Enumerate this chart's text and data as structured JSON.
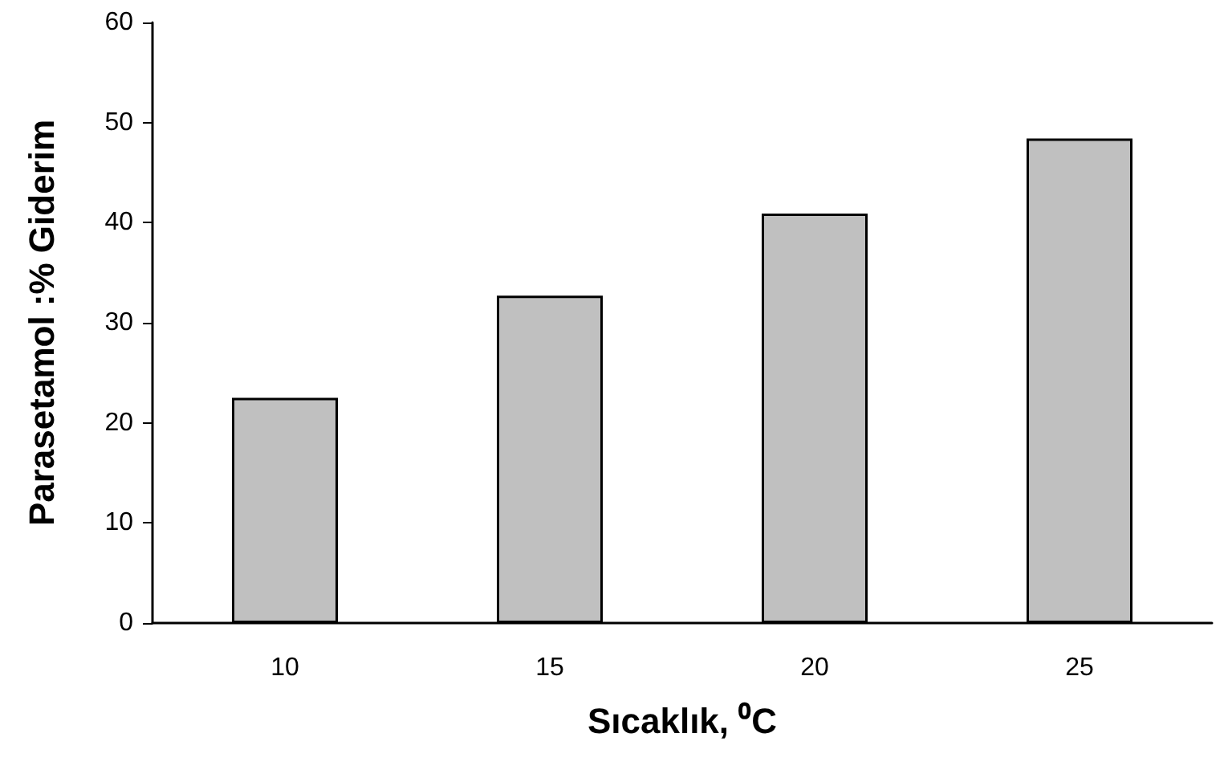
{
  "chart_data": {
    "type": "bar",
    "xlabel": "Sıcaklık, ⁰C",
    "ylabel": "Parasetamol :% Giderim",
    "categories": [
      "10",
      "15",
      "20",
      "25"
    ],
    "values": [
      22.5,
      32.7,
      40.9,
      48.4
    ],
    "color": "#c0c0c0",
    "ylim": [
      0,
      60
    ],
    "yticks": [
      0,
      10,
      20,
      30,
      40,
      50,
      60
    ],
    "grid": false
  }
}
